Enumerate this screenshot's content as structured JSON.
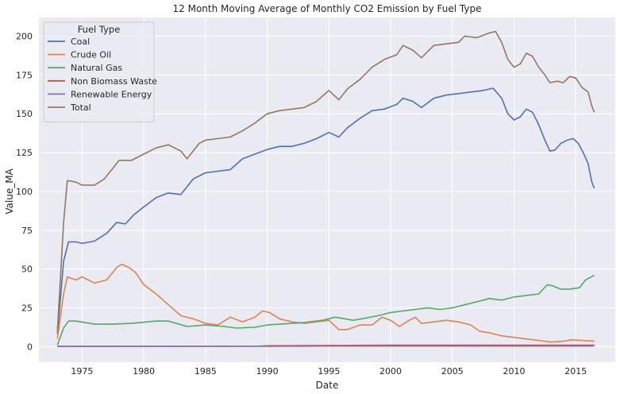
{
  "chart_data": {
    "type": "line",
    "title": "12 Month Moving Average of Monthly CO2 Emission by Fuel Type",
    "xlabel": "Date",
    "ylabel": "Value_MA",
    "xlim": [
      1971.5,
      2018.2
    ],
    "ylim": [
      -10,
      212
    ],
    "xticks": [
      1975,
      1980,
      1985,
      1990,
      1995,
      2000,
      2005,
      2010,
      2015
    ],
    "yticks": [
      0,
      25,
      50,
      75,
      100,
      125,
      150,
      175,
      200
    ],
    "grid": true,
    "background": "#eaeaf2",
    "legend": {
      "title": "Fuel Type",
      "placement": "top-left"
    },
    "series": [
      {
        "name": "Coal",
        "color": "#4c72b0",
        "points": [
          [
            1973.0,
            8
          ],
          [
            1973.5,
            55
          ],
          [
            1973.9,
            67.5
          ],
          [
            1974.5,
            67.5
          ],
          [
            1975.0,
            66.5
          ],
          [
            1976.0,
            68
          ],
          [
            1977.0,
            73
          ],
          [
            1977.8,
            80
          ],
          [
            1978.5,
            79
          ],
          [
            1979.2,
            85
          ],
          [
            1980.0,
            90
          ],
          [
            1981.0,
            96
          ],
          [
            1982.0,
            99
          ],
          [
            1983.0,
            98
          ],
          [
            1983.5,
            103
          ],
          [
            1984.0,
            108
          ],
          [
            1985.0,
            112
          ],
          [
            1986.0,
            113
          ],
          [
            1987.0,
            114
          ],
          [
            1988.0,
            121
          ],
          [
            1989.0,
            124
          ],
          [
            1990.0,
            127
          ],
          [
            1991.0,
            129
          ],
          [
            1992.0,
            129
          ],
          [
            1993.0,
            131
          ],
          [
            1994.0,
            134
          ],
          [
            1995.0,
            138
          ],
          [
            1995.8,
            135
          ],
          [
            1996.5,
            141
          ],
          [
            1997.5,
            147
          ],
          [
            1998.5,
            152
          ],
          [
            1999.5,
            153
          ],
          [
            2000.5,
            156
          ],
          [
            2001.0,
            160
          ],
          [
            2001.8,
            158
          ],
          [
            2002.5,
            154
          ],
          [
            2003.5,
            160
          ],
          [
            2004.5,
            162
          ],
          [
            2005.5,
            163
          ],
          [
            2006.5,
            164
          ],
          [
            2007.5,
            165
          ],
          [
            2008.3,
            166.5
          ],
          [
            2009.0,
            160
          ],
          [
            2009.5,
            150
          ],
          [
            2010.0,
            146
          ],
          [
            2010.5,
            148
          ],
          [
            2011.0,
            153
          ],
          [
            2011.5,
            151
          ],
          [
            2012.0,
            143
          ],
          [
            2012.5,
            133
          ],
          [
            2012.9,
            126
          ],
          [
            2013.3,
            126.5
          ],
          [
            2013.8,
            131
          ],
          [
            2014.3,
            133
          ],
          [
            2014.8,
            134
          ],
          [
            2015.2,
            131
          ],
          [
            2015.6,
            125
          ],
          [
            2016.0,
            118
          ],
          [
            2016.3,
            106
          ],
          [
            2016.5,
            102
          ]
        ]
      },
      {
        "name": "Crude Oil",
        "color": "#dd8452",
        "points": [
          [
            1973.0,
            5
          ],
          [
            1973.5,
            34
          ],
          [
            1973.8,
            45
          ],
          [
            1974.5,
            43
          ],
          [
            1975.0,
            45
          ],
          [
            1976.0,
            41
          ],
          [
            1977.0,
            43
          ],
          [
            1977.8,
            51
          ],
          [
            1978.2,
            53
          ],
          [
            1978.8,
            51
          ],
          [
            1979.3,
            48
          ],
          [
            1980.0,
            40
          ],
          [
            1981.0,
            34
          ],
          [
            1982.0,
            27
          ],
          [
            1983.0,
            20
          ],
          [
            1984.0,
            18
          ],
          [
            1985.0,
            15
          ],
          [
            1986.0,
            14
          ],
          [
            1987.0,
            19
          ],
          [
            1988.0,
            16
          ],
          [
            1989.0,
            19
          ],
          [
            1989.6,
            23
          ],
          [
            1990.2,
            22
          ],
          [
            1991.0,
            18
          ],
          [
            1992.0,
            16
          ],
          [
            1993.0,
            15
          ],
          [
            1994.0,
            16
          ],
          [
            1995.0,
            17
          ],
          [
            1995.8,
            11
          ],
          [
            1996.5,
            11
          ],
          [
            1997.5,
            14
          ],
          [
            1998.5,
            14
          ],
          [
            1999.3,
            19
          ],
          [
            2000.0,
            17
          ],
          [
            2000.7,
            13
          ],
          [
            2001.5,
            17
          ],
          [
            2002.0,
            19
          ],
          [
            2002.5,
            15
          ],
          [
            2003.5,
            16
          ],
          [
            2004.5,
            17
          ],
          [
            2005.5,
            16
          ],
          [
            2006.5,
            14
          ],
          [
            2007.2,
            10
          ],
          [
            2008.0,
            9
          ],
          [
            2009.0,
            7
          ],
          [
            2010.0,
            6
          ],
          [
            2011.0,
            5
          ],
          [
            2012.0,
            4
          ],
          [
            2013.0,
            3
          ],
          [
            2014.0,
            3.5
          ],
          [
            2014.7,
            4.5
          ],
          [
            2015.5,
            4
          ],
          [
            2016.5,
            3.5
          ]
        ]
      },
      {
        "name": "Natural Gas",
        "color": "#55a868",
        "points": [
          [
            1973.0,
            1
          ],
          [
            1973.5,
            12
          ],
          [
            1973.9,
            16.5
          ],
          [
            1974.5,
            16.5
          ],
          [
            1976.0,
            14.5
          ],
          [
            1977.5,
            14.5
          ],
          [
            1979.0,
            15
          ],
          [
            1981.0,
            16.5
          ],
          [
            1982.0,
            16.5
          ],
          [
            1983.5,
            13
          ],
          [
            1985.0,
            14
          ],
          [
            1986.5,
            13
          ],
          [
            1987.5,
            12
          ],
          [
            1989.0,
            12.5
          ],
          [
            1990.0,
            14
          ],
          [
            1991.0,
            14.5
          ],
          [
            1993.0,
            15.5
          ],
          [
            1994.5,
            17
          ],
          [
            1995.5,
            19
          ],
          [
            1997.0,
            17
          ],
          [
            1998.0,
            18.5
          ],
          [
            1999.0,
            20
          ],
          [
            2000.0,
            22
          ],
          [
            2001.0,
            23
          ],
          [
            2002.0,
            24
          ],
          [
            2003.0,
            25
          ],
          [
            2004.0,
            24
          ],
          [
            2005.0,
            25
          ],
          [
            2006.0,
            27
          ],
          [
            2007.0,
            29
          ],
          [
            2008.0,
            31
          ],
          [
            2009.0,
            30
          ],
          [
            2010.0,
            32
          ],
          [
            2011.0,
            33
          ],
          [
            2012.0,
            34
          ],
          [
            2012.7,
            40
          ],
          [
            2013.2,
            39
          ],
          [
            2013.8,
            37
          ],
          [
            2014.5,
            37
          ],
          [
            2015.3,
            38
          ],
          [
            2015.8,
            43
          ],
          [
            2016.5,
            46
          ]
        ]
      },
      {
        "name": "Non Biomass Waste",
        "color": "#c44e52",
        "points": [
          [
            1973.0,
            0.3
          ],
          [
            1985.0,
            0.3
          ],
          [
            1989.5,
            0.4
          ],
          [
            1990.0,
            0.6
          ],
          [
            1995.0,
            0.8
          ],
          [
            2000.0,
            1.0
          ],
          [
            2005.0,
            1.0
          ],
          [
            2010.0,
            1.0
          ],
          [
            2016.5,
            1.0
          ]
        ]
      },
      {
        "name": "Renewable Energy",
        "color": "#8172b3",
        "points": [
          [
            1973.0,
            0.2
          ],
          [
            1990.0,
            0.3
          ],
          [
            1995.0,
            0.4
          ],
          [
            2000.0,
            0.4
          ],
          [
            2005.0,
            0.4
          ],
          [
            2010.0,
            0.4
          ],
          [
            2016.5,
            0.4
          ]
        ]
      },
      {
        "name": "Total",
        "color": "#937860",
        "points": [
          [
            1973.0,
            10
          ],
          [
            1973.5,
            80
          ],
          [
            1973.8,
            107
          ],
          [
            1974.5,
            106
          ],
          [
            1975.0,
            104
          ],
          [
            1976.0,
            104
          ],
          [
            1976.8,
            108
          ],
          [
            1977.5,
            115
          ],
          [
            1978.0,
            120
          ],
          [
            1979.0,
            120
          ],
          [
            1980.0,
            124
          ],
          [
            1981.0,
            128
          ],
          [
            1982.0,
            130
          ],
          [
            1983.0,
            126
          ],
          [
            1983.5,
            121
          ],
          [
            1984.0,
            126
          ],
          [
            1984.5,
            131
          ],
          [
            1985.0,
            133
          ],
          [
            1986.0,
            134
          ],
          [
            1987.0,
            135
          ],
          [
            1988.0,
            139
          ],
          [
            1989.0,
            144
          ],
          [
            1990.0,
            150
          ],
          [
            1991.0,
            152
          ],
          [
            1992.0,
            153
          ],
          [
            1993.0,
            154
          ],
          [
            1994.0,
            158
          ],
          [
            1995.0,
            165
          ],
          [
            1995.8,
            159
          ],
          [
            1996.5,
            166
          ],
          [
            1997.5,
            172
          ],
          [
            1998.5,
            180
          ],
          [
            1999.5,
            185
          ],
          [
            2000.5,
            188
          ],
          [
            2001.0,
            194
          ],
          [
            2001.8,
            191
          ],
          [
            2002.5,
            186
          ],
          [
            2003.5,
            194
          ],
          [
            2004.5,
            195
          ],
          [
            2005.5,
            196
          ],
          [
            2006.0,
            200
          ],
          [
            2007.0,
            199
          ],
          [
            2008.0,
            202
          ],
          [
            2008.5,
            203
          ],
          [
            2009.0,
            196
          ],
          [
            2009.5,
            185
          ],
          [
            2010.0,
            180
          ],
          [
            2010.5,
            182
          ],
          [
            2011.0,
            189
          ],
          [
            2011.5,
            187
          ],
          [
            2012.0,
            180
          ],
          [
            2012.5,
            175
          ],
          [
            2012.9,
            170
          ],
          [
            2013.5,
            171
          ],
          [
            2014.0,
            170
          ],
          [
            2014.5,
            174
          ],
          [
            2015.0,
            173
          ],
          [
            2015.5,
            167
          ],
          [
            2016.0,
            164
          ],
          [
            2016.3,
            155
          ],
          [
            2016.5,
            151
          ]
        ]
      }
    ]
  }
}
